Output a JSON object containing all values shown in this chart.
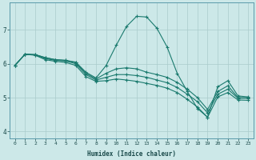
{
  "xlabel": "Humidex (Indice chaleur)",
  "bg_color": "#cce8e8",
  "grid_color": "#aacccc",
  "line_color": "#1a7a6e",
  "xlim": [
    -0.5,
    23.5
  ],
  "ylim": [
    3.8,
    7.8
  ],
  "xticks": [
    0,
    1,
    2,
    3,
    4,
    5,
    6,
    7,
    8,
    9,
    10,
    11,
    12,
    13,
    14,
    15,
    16,
    17,
    18,
    19,
    20,
    21,
    22,
    23
  ],
  "yticks": [
    4,
    5,
    6,
    7
  ],
  "lines": [
    {
      "x": [
        0,
        1,
        2,
        3,
        4,
        5,
        6,
        7,
        8,
        9,
        10,
        11,
        12,
        13,
        14,
        15,
        16,
        17,
        18,
        19,
        20,
        21,
        22,
        23
      ],
      "y": [
        5.95,
        6.28,
        6.27,
        6.18,
        6.12,
        6.1,
        6.05,
        5.75,
        5.58,
        5.95,
        6.55,
        7.1,
        7.4,
        7.38,
        7.05,
        6.5,
        5.72,
        5.18,
        4.68,
        4.42,
        5.32,
        5.5,
        5.05,
        5.02
      ]
    },
    {
      "x": [
        0,
        1,
        2,
        3,
        4,
        5,
        6,
        7,
        8,
        9,
        10,
        11,
        12,
        13,
        14,
        15,
        16,
        17,
        18,
        19,
        20,
        21,
        22,
        23
      ],
      "y": [
        5.95,
        6.28,
        6.27,
        6.18,
        6.12,
        6.1,
        6.03,
        5.72,
        5.55,
        5.72,
        5.85,
        5.88,
        5.85,
        5.75,
        5.68,
        5.6,
        5.45,
        5.25,
        5.0,
        4.65,
        5.18,
        5.35,
        5.0,
        5.0
      ]
    },
    {
      "x": [
        0,
        1,
        2,
        3,
        4,
        5,
        6,
        7,
        8,
        9,
        10,
        11,
        12,
        13,
        14,
        15,
        16,
        17,
        18,
        19,
        20,
        21,
        22,
        23
      ],
      "y": [
        5.95,
        6.28,
        6.26,
        6.15,
        6.1,
        6.08,
        6.0,
        5.68,
        5.52,
        5.6,
        5.68,
        5.68,
        5.65,
        5.6,
        5.52,
        5.44,
        5.3,
        5.1,
        4.88,
        4.55,
        5.1,
        5.25,
        4.98,
        4.98
      ]
    },
    {
      "x": [
        0,
        1,
        2,
        3,
        4,
        5,
        6,
        7,
        8,
        9,
        10,
        11,
        12,
        13,
        14,
        15,
        16,
        17,
        18,
        19,
        20,
        21,
        22,
        23
      ],
      "y": [
        5.95,
        6.28,
        6.25,
        6.12,
        6.07,
        6.04,
        5.95,
        5.62,
        5.48,
        5.5,
        5.55,
        5.52,
        5.48,
        5.42,
        5.36,
        5.28,
        5.15,
        4.95,
        4.72,
        4.42,
        5.02,
        5.15,
        4.93,
        4.92
      ]
    }
  ]
}
